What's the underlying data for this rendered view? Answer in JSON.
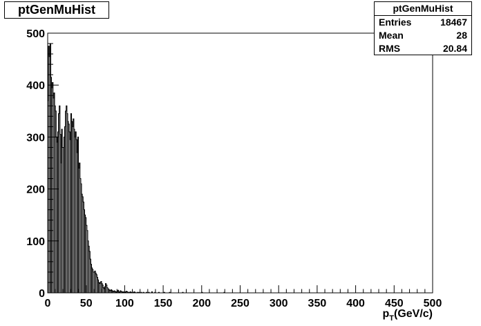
{
  "chart_data": {
    "type": "bar",
    "title": "ptGenMuHist",
    "xlabel_main": "p",
    "xlabel_sub": "T",
    "xlabel_rest": "(GeV/c)",
    "xlim": [
      0,
      500
    ],
    "ylim": [
      0,
      500
    ],
    "x_ticks": [
      0,
      50,
      100,
      150,
      200,
      250,
      300,
      350,
      400,
      450,
      500
    ],
    "y_ticks": [
      0,
      100,
      200,
      300,
      400,
      500
    ],
    "bin_width": 1,
    "stats": {
      "title": "ptGenMuHist",
      "rows": [
        {
          "label": "Entries",
          "value": "18467"
        },
        {
          "label": "Mean",
          "value": "28"
        },
        {
          "label": "RMS",
          "value": "20.84"
        }
      ]
    },
    "bin_start": 0,
    "values": [
      370,
      475,
      455,
      480,
      415,
      395,
      405,
      375,
      385,
      360,
      350,
      300,
      290,
      310,
      345,
      360,
      305,
      250,
      315,
      280,
      280,
      300,
      320,
      350,
      360,
      345,
      330,
      325,
      310,
      295,
      345,
      330,
      320,
      335,
      315,
      300,
      310,
      295,
      270,
      300,
      240,
      250,
      220,
      210,
      190,
      185,
      175,
      160,
      150,
      145,
      130,
      120,
      100,
      90,
      80,
      65,
      55,
      48,
      45,
      40,
      40,
      42,
      38,
      35,
      30,
      25,
      20,
      18,
      20,
      22,
      18,
      15,
      10,
      8,
      12,
      18,
      15,
      10,
      8,
      6,
      5,
      4,
      6,
      5,
      3,
      2,
      4,
      3,
      2,
      1,
      3,
      5,
      2,
      1,
      4,
      3,
      2,
      1,
      2,
      1,
      0,
      2,
      3,
      2,
      1,
      0,
      1,
      2,
      1,
      0,
      0,
      1,
      2,
      1,
      0,
      0,
      1,
      0,
      1,
      0,
      0,
      1,
      0,
      0,
      1,
      0,
      0,
      0,
      1,
      0,
      0,
      1,
      0,
      0,
      0,
      2,
      0,
      0,
      0,
      1,
      0,
      0,
      0,
      0,
      1,
      0,
      0,
      0,
      0,
      0,
      0,
      1,
      0,
      0,
      0,
      0,
      0,
      0,
      1,
      0,
      0,
      0,
      0,
      0,
      0,
      0,
      0,
      0,
      0,
      0,
      0,
      0,
      0,
      0,
      0,
      1,
      0,
      0,
      0,
      0,
      0,
      0,
      0,
      0,
      0,
      0,
      0,
      0,
      0,
      0,
      0,
      0,
      0,
      0,
      0,
      0,
      0,
      0,
      0,
      0,
      1,
      0,
      0,
      0,
      0,
      0,
      0,
      0,
      0,
      0,
      0,
      0,
      0,
      0,
      0,
      0,
      0,
      0,
      0,
      0,
      0,
      0,
      0,
      0,
      0,
      0,
      0,
      0,
      0,
      1
    ]
  }
}
